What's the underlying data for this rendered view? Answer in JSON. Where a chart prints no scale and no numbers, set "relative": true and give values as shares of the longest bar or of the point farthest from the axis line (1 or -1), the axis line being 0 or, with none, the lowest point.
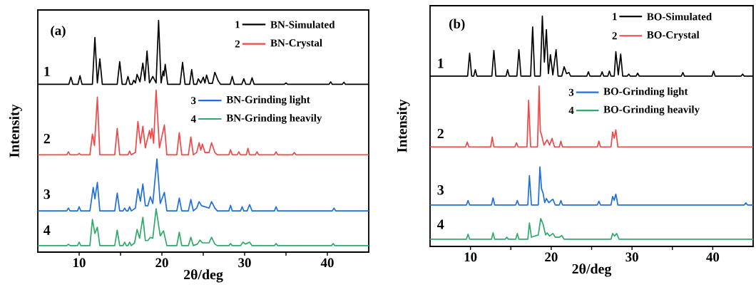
{
  "chart_data": [
    {
      "type": "line",
      "relative": true,
      "xlabel": "2θ/deg",
      "ylabel": "Intensity",
      "xlim": [
        5,
        45
      ],
      "xticks": [
        10,
        {
          "value": 15,
          "label": null
        },
        20,
        {
          "value": 25,
          "label": null
        },
        30,
        {
          "value": 35,
          "label": null
        },
        40
      ],
      "legend": "top right",
      "annotations": [
        "(a)",
        "1",
        "2",
        "3",
        "4"
      ],
      "series": [
        {
          "name": "BN-Simulated",
          "color": "#000000",
          "x": [
            5,
            8.75,
            9.0,
            9.25,
            9.85,
            10.1,
            10.35,
            11.6,
            11.9,
            12.2,
            12.5,
            12.8,
            14.6,
            14.9,
            15.2,
            15.65,
            15.9,
            16.15,
            16.4,
            16.6,
            16.8,
            17.0,
            17.35,
            17.7,
            17.95,
            18.2,
            18.5,
            18.9,
            19.3,
            19.6,
            19.9,
            20.15,
            20.25,
            20.4,
            20.7,
            22.2,
            22.5,
            22.8,
            23.35,
            23.6,
            23.85,
            24.2,
            24.4,
            24.7,
            25.0,
            25.2,
            25.4,
            25.7,
            26.1,
            26.4,
            26.8,
            27.1,
            28.25,
            28.5,
            28.75,
            29.65,
            29.9,
            30.15,
            30.65,
            30.9,
            31.15,
            34.8,
            35.0,
            35.2,
            40.2,
            40.4,
            40.6,
            41.8,
            42.0,
            42.2,
            45
          ],
          "values": [
            0.724,
            0.724,
            0.755,
            0.724,
            0.724,
            0.761,
            0.724,
            0.724,
            0.926,
            0.73,
            0.834,
            0.724,
            0.724,
            0.822,
            0.724,
            0.724,
            0.758,
            0.724,
            0.724,
            0.742,
            0.73,
            0.767,
            0.735,
            0.816,
            0.74,
            0.868,
            0.73,
            0.758,
            0.73,
            1.0,
            0.73,
            0.782,
            0.76,
            0.81,
            0.724,
            0.724,
            0.819,
            0.724,
            0.724,
            0.788,
            0.724,
            0.724,
            0.748,
            0.73,
            0.755,
            0.73,
            0.764,
            0.728,
            0.728,
            0.776,
            0.74,
            0.724,
            0.724,
            0.758,
            0.724,
            0.724,
            0.748,
            0.724,
            0.724,
            0.752,
            0.724,
            0.724,
            0.73,
            0.724,
            0.724,
            0.735,
            0.724,
            0.724,
            0.733,
            0.724,
            0.724
          ]
        },
        {
          "name": "BN-Crystal",
          "color": "#f04848",
          "x": [
            5,
            8.5,
            8.7,
            8.9,
            9.8,
            10.0,
            10.2,
            11.3,
            11.6,
            11.85,
            12.2,
            12.5,
            14.3,
            14.6,
            14.9,
            15.9,
            16.1,
            16.3,
            16.8,
            17.1,
            17.4,
            17.7,
            18.0,
            18.5,
            18.65,
            18.8,
            19.0,
            19.3,
            19.7,
            20.3,
            20.6,
            21.8,
            22.1,
            22.4,
            23.2,
            23.5,
            23.8,
            24.2,
            24.5,
            24.7,
            24.9,
            25.2,
            25.7,
            26.0,
            26.4,
            26.7,
            28.1,
            28.3,
            28.5,
            29.1,
            29.3,
            29.5,
            30.2,
            30.4,
            30.6,
            31.3,
            31.5,
            31.7,
            33.6,
            33.8,
            34.0,
            35.8,
            36.0,
            36.2,
            45
          ],
          "values": [
            0.42,
            0.42,
            0.433,
            0.42,
            0.42,
            0.426,
            0.42,
            0.42,
            0.509,
            0.46,
            0.669,
            0.42,
            0.42,
            0.534,
            0.42,
            0.42,
            0.436,
            0.42,
            0.43,
            0.564,
            0.47,
            0.543,
            0.45,
            0.525,
            0.49,
            0.534,
            0.47,
            0.699,
            0.45,
            0.549,
            0.42,
            0.42,
            0.515,
            0.42,
            0.42,
            0.497,
            0.42,
            0.43,
            0.472,
            0.44,
            0.466,
            0.43,
            0.43,
            0.472,
            0.43,
            0.42,
            0.42,
            0.442,
            0.42,
            0.42,
            0.433,
            0.42,
            0.42,
            0.448,
            0.42,
            0.42,
            0.433,
            0.42,
            0.42,
            0.433,
            0.42,
            0.42,
            0.43,
            0.42,
            0.42
          ]
        },
        {
          "name": "BN-Grinding light",
          "color": "#1f6fde",
          "x": [
            5,
            8.5,
            8.7,
            8.9,
            9.8,
            10.0,
            10.2,
            11.3,
            11.7,
            11.9,
            12.2,
            12.5,
            14.3,
            14.6,
            14.9,
            15.3,
            15.5,
            15.7,
            15.9,
            16.1,
            16.3,
            16.8,
            17.1,
            17.4,
            17.7,
            18.0,
            18.3,
            18.6,
            18.9,
            19.4,
            19.8,
            20.3,
            20.6,
            21.8,
            22.1,
            22.4,
            23.2,
            23.5,
            23.8,
            24.2,
            24.5,
            24.8,
            25.7,
            26.0,
            26.4,
            26.7,
            28.1,
            28.3,
            28.5,
            29.5,
            29.7,
            29.9,
            30.3,
            30.6,
            30.9,
            33.6,
            33.8,
            34.0,
            40.6,
            40.8,
            41.0,
            45
          ],
          "values": [
            0.178,
            0.178,
            0.19,
            0.178,
            0.178,
            0.196,
            0.178,
            0.178,
            0.279,
            0.23,
            0.301,
            0.178,
            0.178,
            0.255,
            0.178,
            0.178,
            0.19,
            0.178,
            0.178,
            0.196,
            0.178,
            0.19,
            0.273,
            0.22,
            0.294,
            0.2,
            0.2,
            0.239,
            0.21,
            0.402,
            0.21,
            0.258,
            0.178,
            0.178,
            0.233,
            0.178,
            0.178,
            0.227,
            0.178,
            0.19,
            0.218,
            0.2,
            0.19,
            0.218,
            0.19,
            0.178,
            0.178,
            0.202,
            0.178,
            0.178,
            0.196,
            0.178,
            0.178,
            0.205,
            0.178,
            0.178,
            0.196,
            0.178,
            0.178,
            0.19,
            0.178,
            0.178
          ]
        },
        {
          "name": "BN-Grinding heavily",
          "color": "#2eaa6a",
          "x": [
            5,
            8.5,
            8.7,
            8.9,
            9.8,
            10.0,
            10.2,
            11.3,
            11.6,
            11.9,
            12.2,
            12.5,
            14.3,
            14.6,
            14.9,
            15.3,
            15.5,
            15.7,
            15.9,
            16.1,
            16.3,
            16.7,
            17.0,
            17.3,
            17.7,
            18.0,
            18.3,
            18.6,
            18.9,
            19.3,
            19.8,
            20.2,
            20.6,
            21.8,
            22.1,
            22.4,
            23.2,
            23.5,
            23.8,
            24.3,
            24.6,
            24.9,
            25.7,
            26.0,
            26.4,
            26.7,
            28.1,
            28.3,
            28.5,
            29.5,
            29.8,
            30.1,
            30.6,
            30.9,
            33.6,
            33.8,
            34.0,
            40.5,
            40.7,
            40.9,
            45
          ],
          "values": [
            0.028,
            0.028,
            0.034,
            0.028,
            0.028,
            0.043,
            0.028,
            0.028,
            0.141,
            0.08,
            0.107,
            0.028,
            0.028,
            0.095,
            0.028,
            0.028,
            0.043,
            0.028,
            0.028,
            0.043,
            0.028,
            0.04,
            0.098,
            0.06,
            0.15,
            0.05,
            0.05,
            0.064,
            0.06,
            0.187,
            0.07,
            0.092,
            0.028,
            0.028,
            0.086,
            0.028,
            0.028,
            0.064,
            0.028,
            0.035,
            0.052,
            0.04,
            0.04,
            0.064,
            0.035,
            0.028,
            0.028,
            0.037,
            0.028,
            0.028,
            0.043,
            0.035,
            0.043,
            0.028,
            0.028,
            0.037,
            0.028,
            0.028,
            0.037,
            0.028,
            0.028
          ]
        }
      ]
    },
    {
      "type": "line",
      "relative": true,
      "xlabel": "2θ/deg",
      "ylabel": "Intensity",
      "xlim": [
        5,
        45
      ],
      "xticks": [
        10,
        {
          "value": 15,
          "label": null
        },
        20,
        {
          "value": 25,
          "label": null
        },
        30,
        {
          "value": 35,
          "label": null
        },
        40
      ],
      "legend": "top right",
      "annotations": [
        "(b)",
        "1",
        "2",
        "3",
        "4"
      ],
      "series": [
        {
          "name": "BO-Simulated",
          "color": "#000000",
          "x": [
            5,
            9.65,
            9.9,
            10.15,
            10.4,
            10.6,
            10.8,
            12.65,
            12.9,
            13.15,
            14.4,
            14.6,
            14.8,
            15.75,
            16.0,
            16.25,
            17.45,
            17.7,
            17.95,
            18.65,
            18.9,
            19.15,
            19.4,
            19.65,
            19.9,
            20.2,
            20.6,
            20.85,
            21.3,
            21.6,
            21.9,
            22.2,
            22.4,
            24.4,
            24.6,
            24.8,
            26.1,
            26.3,
            26.5,
            27.0,
            27.2,
            27.4,
            27.8,
            28.0,
            28.3,
            28.6,
            28.85,
            29.4,
            29.6,
            29.8,
            30.5,
            30.7,
            30.9,
            36.1,
            36.3,
            36.5,
            39.9,
            40.1,
            40.3,
            43.5,
            43.7,
            43.9,
            45
          ],
          "values": [
            0.739,
            0.739,
            0.839,
            0.739,
            0.739,
            0.767,
            0.739,
            0.739,
            0.851,
            0.739,
            0.739,
            0.767,
            0.739,
            0.739,
            0.854,
            0.739,
            0.739,
            0.953,
            0.739,
            0.739,
            1.0,
            0.8,
            0.941,
            0.75,
            0.832,
            0.745,
            0.854,
            0.739,
            0.739,
            0.78,
            0.75,
            0.755,
            0.739,
            0.739,
            0.758,
            0.739,
            0.739,
            0.758,
            0.739,
            0.739,
            0.761,
            0.739,
            0.739,
            0.845,
            0.745,
            0.835,
            0.739,
            0.739,
            0.748,
            0.739,
            0.739,
            0.752,
            0.739,
            0.739,
            0.755,
            0.739,
            0.739,
            0.761,
            0.739,
            0.739,
            0.748,
            0.739,
            0.739
          ]
        },
        {
          "name": "BO-Crystal",
          "color": "#f04848",
          "x": [
            5,
            9.4,
            9.6,
            9.8,
            12.5,
            12.7,
            12.9,
            15.5,
            15.7,
            15.9,
            17.0,
            17.2,
            17.45,
            18.3,
            18.5,
            18.65,
            18.8,
            19.1,
            19.5,
            19.8,
            20.1,
            20.4,
            21.0,
            21.2,
            21.4,
            25.7,
            25.9,
            26.1,
            27.4,
            27.6,
            27.8,
            28.0,
            28.25,
            45
          ],
          "values": [
            0.432,
            0.432,
            0.453,
            0.432,
            0.432,
            0.475,
            0.432,
            0.432,
            0.45,
            0.432,
            0.432,
            0.634,
            0.432,
            0.432,
            0.696,
            0.5,
            0.484,
            0.44,
            0.463,
            0.44,
            0.469,
            0.432,
            0.432,
            0.457,
            0.432,
            0.432,
            0.457,
            0.432,
            0.432,
            0.497,
            0.47,
            0.506,
            0.432,
            0.432
          ]
        },
        {
          "name": "BO-Grinding light",
          "color": "#1f6fde",
          "x": [
            5,
            9.5,
            9.7,
            9.9,
            12.6,
            12.8,
            13.0,
            15.6,
            15.8,
            16.0,
            17.1,
            17.3,
            17.55,
            18.4,
            18.6,
            18.8,
            19.0,
            19.2,
            19.4,
            19.7,
            20.2,
            20.5,
            21.0,
            21.2,
            21.4,
            25.7,
            25.9,
            26.1,
            27.4,
            27.6,
            27.8,
            28.0,
            28.25,
            43.9,
            44.1,
            44.3,
            45
          ],
          "values": [
            0.18,
            0.18,
            0.199,
            0.18,
            0.18,
            0.211,
            0.18,
            0.18,
            0.199,
            0.18,
            0.18,
            0.307,
            0.18,
            0.18,
            0.345,
            0.25,
            0.23,
            0.19,
            0.208,
            0.19,
            0.205,
            0.18,
            0.18,
            0.199,
            0.18,
            0.18,
            0.196,
            0.18,
            0.18,
            0.217,
            0.2,
            0.227,
            0.18,
            0.18,
            0.189,
            0.18,
            0.18
          ]
        },
        {
          "name": "BO-Grinding heavily",
          "color": "#2eaa6a",
          "x": [
            5,
            9.5,
            9.7,
            9.9,
            12.6,
            12.8,
            13.0,
            14.3,
            14.5,
            14.7,
            15.6,
            15.8,
            16.0,
            17.1,
            17.3,
            17.55,
            18.4,
            18.7,
            19.0,
            19.3,
            19.5,
            19.8,
            20.2,
            20.5,
            21.0,
            21.3,
            21.6,
            27.4,
            27.6,
            27.85,
            28.1,
            28.4,
            45
          ],
          "values": [
            0.031,
            0.031,
            0.053,
            0.031,
            0.031,
            0.059,
            0.031,
            0.031,
            0.04,
            0.031,
            0.031,
            0.056,
            0.031,
            0.031,
            0.102,
            0.04,
            0.05,
            0.121,
            0.096,
            0.05,
            0.059,
            0.045,
            0.056,
            0.04,
            0.04,
            0.047,
            0.031,
            0.031,
            0.056,
            0.045,
            0.056,
            0.031,
            0.031
          ]
        }
      ]
    }
  ]
}
